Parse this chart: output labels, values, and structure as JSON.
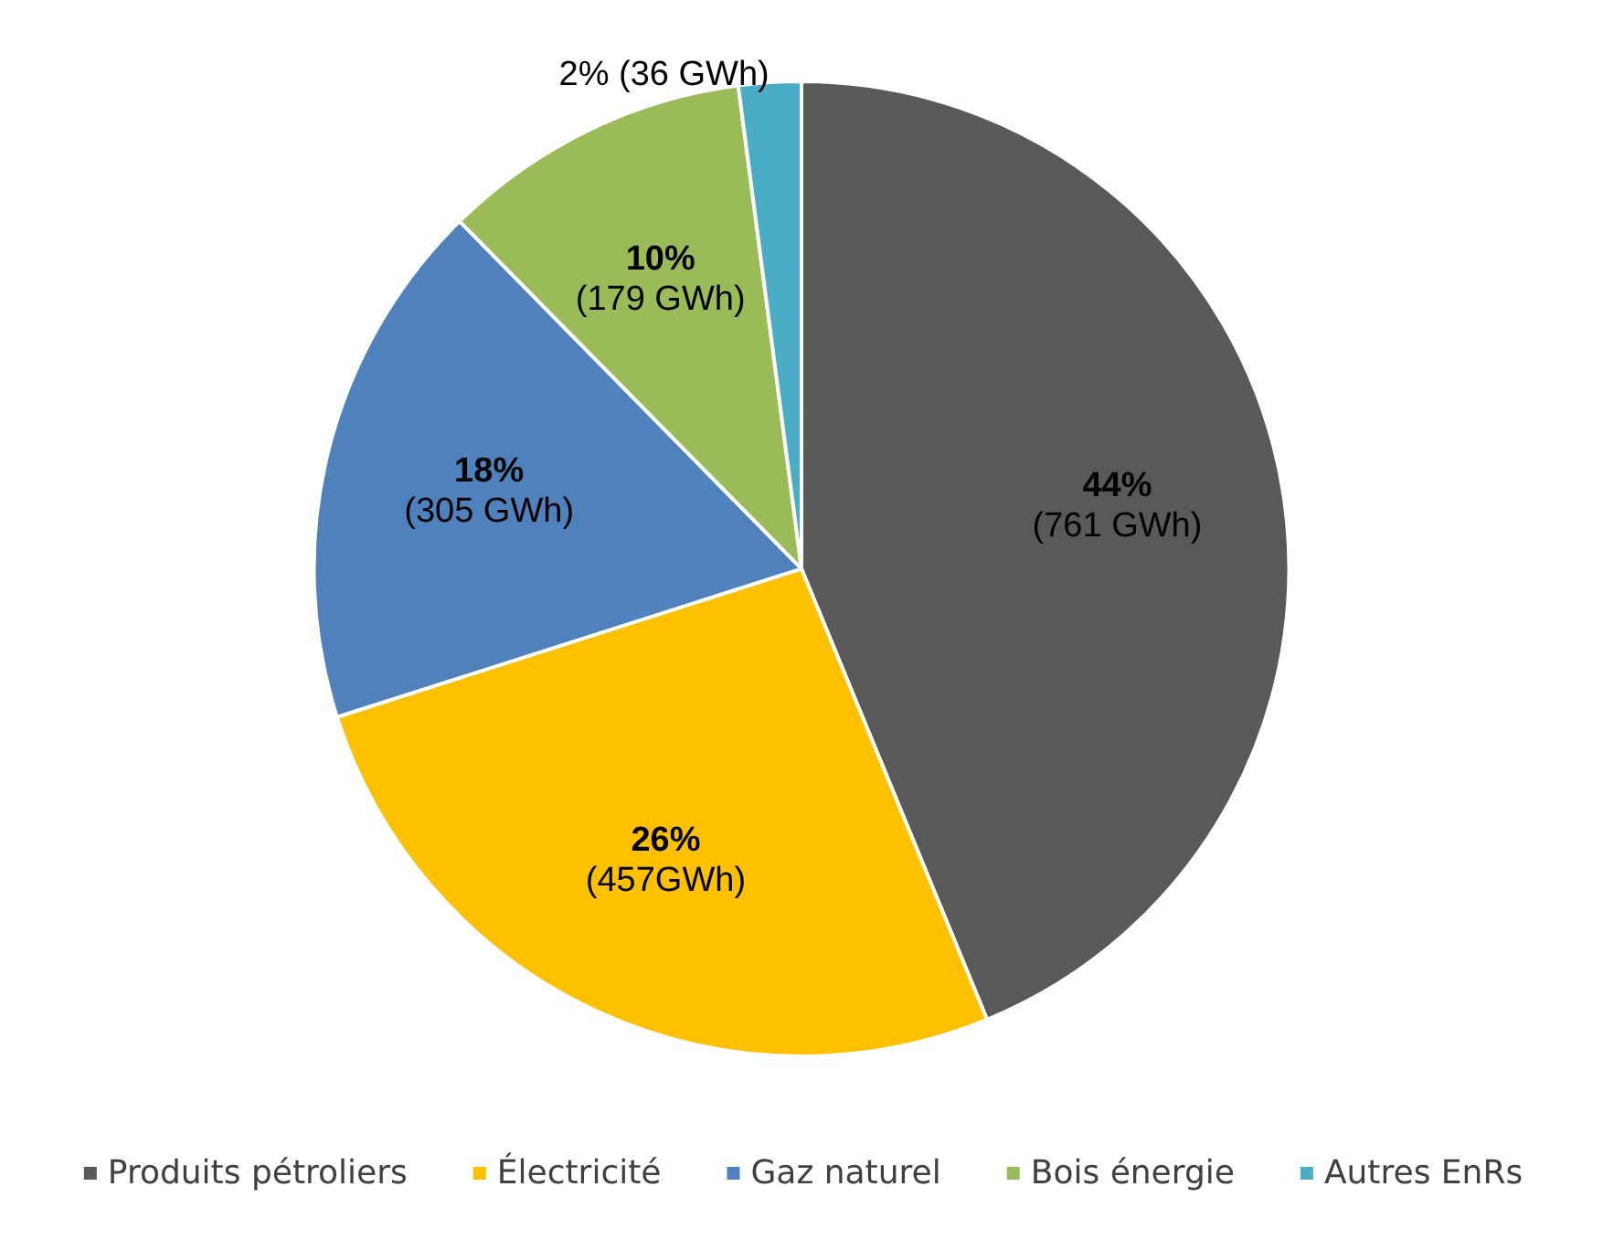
{
  "chart_data": {
    "type": "pie",
    "categories": [
      "Produits pétroliers",
      "Électricité",
      "Gaz naturel",
      "Bois énergie",
      "Autres EnRs"
    ],
    "values": [
      761,
      457,
      305,
      179,
      36
    ],
    "colors": [
      "#595959",
      "#ffc000",
      "#4f81bd",
      "#9bbb59",
      "#4bacc6"
    ],
    "value_labels": [
      "44% (761 GWh)",
      "26% (457GWh)",
      "18% (305 GWh)",
      "10% (179 GWh)",
      "2% (36 GWh)"
    ],
    "legend": "bottom"
  }
}
